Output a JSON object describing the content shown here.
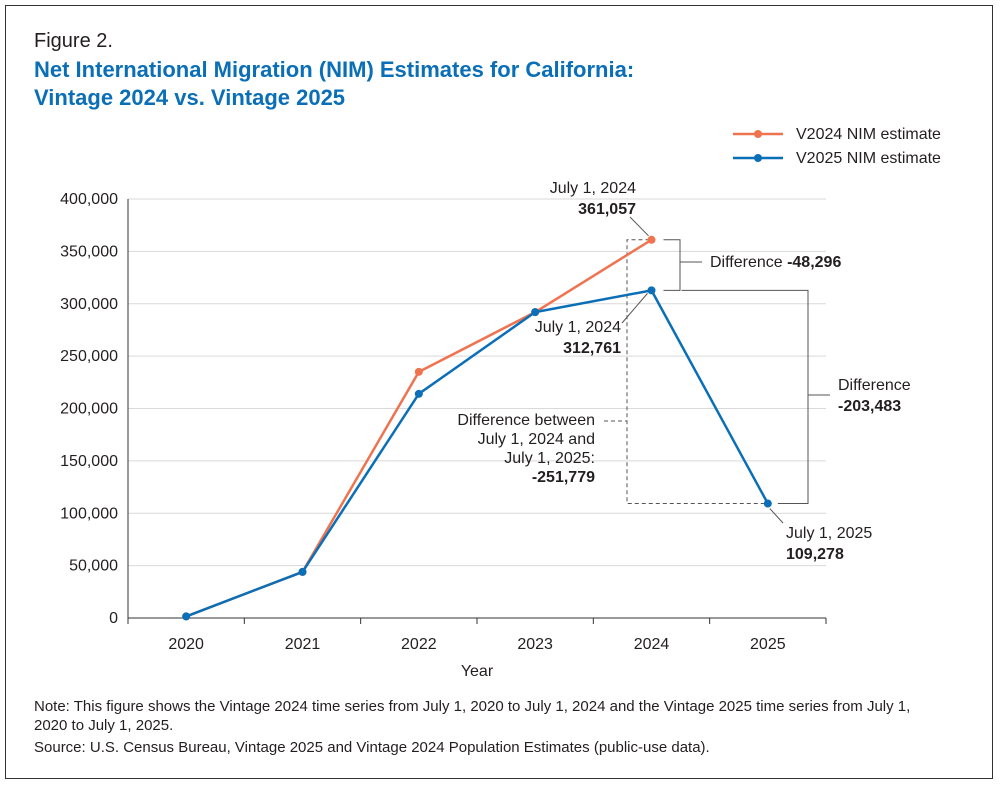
{
  "figure_label": "Figure 2.",
  "title_lines": [
    "Net International Migration (NIM) Estimates for California:",
    "Vintage 2024 vs. Vintage 2025"
  ],
  "note": "Note: This figure shows the Vintage 2024 time series from July 1, 2020 to July  1, 2024 and the Vintage 2025 time series from July 1, 2020 to July 1, 2025.",
  "source": "Source: U.S. Census Bureau, Vintage 2025 and Vintage 2024 Population Estimates (public-use data).",
  "colors": {
    "v2024": "#f0734f",
    "v2025": "#0a6fb6",
    "title": "#0a6fb6",
    "grid": "#d9d9d9",
    "axis": "#333333"
  },
  "chart_data": {
    "type": "line",
    "xlabel": "Year",
    "ylabel": "",
    "x": [
      "2020",
      "2021",
      "2022",
      "2023",
      "2024",
      "2025"
    ],
    "ylim": [
      0,
      400000
    ],
    "yticks": [
      0,
      50000,
      100000,
      150000,
      200000,
      250000,
      300000,
      350000,
      400000
    ],
    "ytick_labels": [
      "0",
      "50,000",
      "100,000",
      "150,000",
      "200,000",
      "250,000",
      "300,000",
      "350,000",
      "400,000"
    ],
    "grid": "horizontal",
    "legend_position": "top-right",
    "series": [
      {
        "name": "V2024 NIM estimate",
        "color": "#f0734f",
        "values": [
          1500,
          44000,
          235000,
          292000,
          361057,
          null
        ]
      },
      {
        "name": "V2025 NIM estimate",
        "color": "#0a6fb6",
        "values": [
          1500,
          44000,
          214000,
          292000,
          312761,
          109278
        ]
      }
    ],
    "annotations": {
      "v2024_point": {
        "label": "July 1, 2024",
        "value": "361,057"
      },
      "v2025_point_2024": {
        "label": "July 1, 2024",
        "value": "312,761"
      },
      "v2025_point_2025": {
        "label": "July 1, 2025",
        "value": "109,278"
      },
      "diff_vintages": {
        "label": "Difference",
        "value": "-48,296"
      },
      "diff_v2025": {
        "label": "Difference",
        "value": "-203,483"
      },
      "diff_between": {
        "lines": [
          "Difference between",
          "July 1, 2024 and",
          "July 1, 2025:"
        ],
        "value": "-251,779"
      }
    }
  }
}
